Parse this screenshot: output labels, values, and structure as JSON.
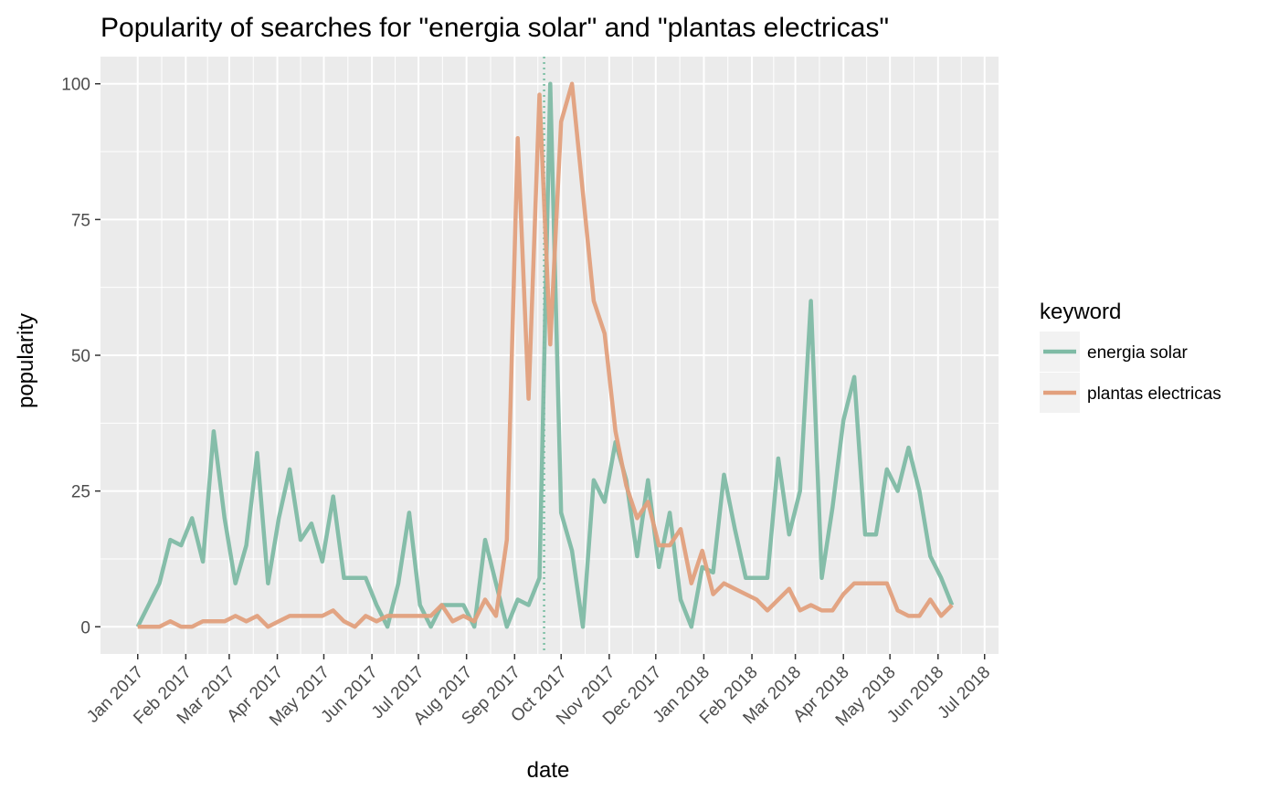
{
  "chart_data": {
    "type": "line",
    "title": "Popularity of searches for \"energia solar\" and \"plantas electricas\"",
    "xlabel": "date",
    "ylabel": "popularity",
    "xlim": [
      "2016-12-08",
      "2018-07-10"
    ],
    "ylim": [
      -5,
      105
    ],
    "y_ticks": [
      0,
      25,
      50,
      75,
      100
    ],
    "x_ticks": [
      {
        "date": "2017-01-01",
        "label": "Jan 2017"
      },
      {
        "date": "2017-02-01",
        "label": "Feb 2017"
      },
      {
        "date": "2017-03-01",
        "label": "Mar 2017"
      },
      {
        "date": "2017-04-01",
        "label": "Apr 2017"
      },
      {
        "date": "2017-05-01",
        "label": "May 2017"
      },
      {
        "date": "2017-06-01",
        "label": "Jun 2017"
      },
      {
        "date": "2017-07-01",
        "label": "Jul 2017"
      },
      {
        "date": "2017-08-01",
        "label": "Aug 2017"
      },
      {
        "date": "2017-09-01",
        "label": "Sep 2017"
      },
      {
        "date": "2017-10-01",
        "label": "Oct 2017"
      },
      {
        "date": "2017-11-01",
        "label": "Nov 2017"
      },
      {
        "date": "2017-12-01",
        "label": "Dec 2017"
      },
      {
        "date": "2018-01-01",
        "label": "Jan 2018"
      },
      {
        "date": "2018-02-01",
        "label": "Feb 2018"
      },
      {
        "date": "2018-03-01",
        "label": "Mar 2018"
      },
      {
        "date": "2018-04-01",
        "label": "Apr 2018"
      },
      {
        "date": "2018-05-01",
        "label": "May 2018"
      },
      {
        "date": "2018-06-01",
        "label": "Jun 2018"
      },
      {
        "date": "2018-07-01",
        "label": "Jul 2018"
      }
    ],
    "vline": {
      "date": "2017-09-20",
      "color": "#7fc0a6",
      "style": "dotted"
    },
    "grid": true,
    "legend": {
      "title": "keyword",
      "position": "right"
    },
    "background": "#ebebeb",
    "series": [
      {
        "name": "energia solar",
        "color": "#7fbba5",
        "points": [
          [
            "2017-01-01",
            0
          ],
          [
            "2017-01-08",
            4
          ],
          [
            "2017-01-15",
            8
          ],
          [
            "2017-01-22",
            16
          ],
          [
            "2017-01-29",
            15
          ],
          [
            "2017-02-05",
            20
          ],
          [
            "2017-02-12",
            12
          ],
          [
            "2017-02-19",
            36
          ],
          [
            "2017-02-26",
            20
          ],
          [
            "2017-03-05",
            8
          ],
          [
            "2017-03-12",
            15
          ],
          [
            "2017-03-19",
            32
          ],
          [
            "2017-03-26",
            8
          ],
          [
            "2017-04-02",
            20
          ],
          [
            "2017-04-09",
            29
          ],
          [
            "2017-04-16",
            16
          ],
          [
            "2017-04-23",
            19
          ],
          [
            "2017-04-30",
            12
          ],
          [
            "2017-05-07",
            24
          ],
          [
            "2017-05-14",
            9
          ],
          [
            "2017-05-21",
            9
          ],
          [
            "2017-05-28",
            9
          ],
          [
            "2017-06-04",
            4
          ],
          [
            "2017-06-11",
            0
          ],
          [
            "2017-06-18",
            8
          ],
          [
            "2017-06-25",
            21
          ],
          [
            "2017-07-02",
            4
          ],
          [
            "2017-07-09",
            0
          ],
          [
            "2017-07-16",
            4
          ],
          [
            "2017-07-23",
            4
          ],
          [
            "2017-07-30",
            4
          ],
          [
            "2017-08-06",
            0
          ],
          [
            "2017-08-13",
            16
          ],
          [
            "2017-08-20",
            8
          ],
          [
            "2017-08-27",
            0
          ],
          [
            "2017-09-03",
            5
          ],
          [
            "2017-09-10",
            4
          ],
          [
            "2017-09-17",
            9
          ],
          [
            "2017-09-24",
            100
          ],
          [
            "2017-10-01",
            21
          ],
          [
            "2017-10-08",
            14
          ],
          [
            "2017-10-15",
            0
          ],
          [
            "2017-10-22",
            27
          ],
          [
            "2017-10-29",
            23
          ],
          [
            "2017-11-05",
            34
          ],
          [
            "2017-11-12",
            27
          ],
          [
            "2017-11-19",
            13
          ],
          [
            "2017-11-26",
            27
          ],
          [
            "2017-12-03",
            11
          ],
          [
            "2017-12-10",
            21
          ],
          [
            "2017-12-17",
            5
          ],
          [
            "2017-12-24",
            0
          ],
          [
            "2017-12-31",
            11
          ],
          [
            "2018-01-07",
            10
          ],
          [
            "2018-01-14",
            28
          ],
          [
            "2018-01-21",
            18
          ],
          [
            "2018-01-28",
            9
          ],
          [
            "2018-02-04",
            9
          ],
          [
            "2018-02-11",
            9
          ],
          [
            "2018-02-18",
            31
          ],
          [
            "2018-02-25",
            17
          ],
          [
            "2018-03-04",
            25
          ],
          [
            "2018-03-11",
            60
          ],
          [
            "2018-03-18",
            9
          ],
          [
            "2018-03-25",
            22
          ],
          [
            "2018-04-01",
            38
          ],
          [
            "2018-04-08",
            46
          ],
          [
            "2018-04-15",
            17
          ],
          [
            "2018-04-22",
            17
          ],
          [
            "2018-04-29",
            29
          ],
          [
            "2018-05-06",
            25
          ],
          [
            "2018-05-13",
            33
          ],
          [
            "2018-05-20",
            25
          ],
          [
            "2018-05-27",
            13
          ],
          [
            "2018-06-03",
            9
          ],
          [
            "2018-06-10",
            4
          ]
        ]
      },
      {
        "name": "plantas electricas",
        "color": "#e2a07d",
        "points": [
          [
            "2017-01-01",
            0
          ],
          [
            "2017-01-08",
            0
          ],
          [
            "2017-01-15",
            0
          ],
          [
            "2017-01-22",
            1
          ],
          [
            "2017-01-29",
            0
          ],
          [
            "2017-02-05",
            0
          ],
          [
            "2017-02-12",
            1
          ],
          [
            "2017-02-19",
            1
          ],
          [
            "2017-02-26",
            1
          ],
          [
            "2017-03-05",
            2
          ],
          [
            "2017-03-12",
            1
          ],
          [
            "2017-03-19",
            2
          ],
          [
            "2017-03-26",
            0
          ],
          [
            "2017-04-02",
            1
          ],
          [
            "2017-04-09",
            2
          ],
          [
            "2017-04-16",
            2
          ],
          [
            "2017-04-23",
            2
          ],
          [
            "2017-04-30",
            2
          ],
          [
            "2017-05-07",
            3
          ],
          [
            "2017-05-14",
            1
          ],
          [
            "2017-05-21",
            0
          ],
          [
            "2017-05-28",
            2
          ],
          [
            "2017-06-04",
            1
          ],
          [
            "2017-06-11",
            2
          ],
          [
            "2017-06-18",
            2
          ],
          [
            "2017-06-25",
            2
          ],
          [
            "2017-07-02",
            2
          ],
          [
            "2017-07-09",
            2
          ],
          [
            "2017-07-16",
            4
          ],
          [
            "2017-07-23",
            1
          ],
          [
            "2017-07-30",
            2
          ],
          [
            "2017-08-06",
            1
          ],
          [
            "2017-08-13",
            5
          ],
          [
            "2017-08-20",
            2
          ],
          [
            "2017-08-27",
            16
          ],
          [
            "2017-09-03",
            90
          ],
          [
            "2017-09-10",
            42
          ],
          [
            "2017-09-17",
            98
          ],
          [
            "2017-09-24",
            52
          ],
          [
            "2017-10-01",
            93
          ],
          [
            "2017-10-08",
            100
          ],
          [
            "2017-10-15",
            80
          ],
          [
            "2017-10-22",
            60
          ],
          [
            "2017-10-29",
            54
          ],
          [
            "2017-11-05",
            36
          ],
          [
            "2017-11-12",
            26
          ],
          [
            "2017-11-19",
            20
          ],
          [
            "2017-11-26",
            23
          ],
          [
            "2017-12-03",
            15
          ],
          [
            "2017-12-10",
            15
          ],
          [
            "2017-12-17",
            18
          ],
          [
            "2017-12-24",
            8
          ],
          [
            "2017-12-31",
            14
          ],
          [
            "2018-01-07",
            6
          ],
          [
            "2018-01-14",
            8
          ],
          [
            "2018-01-21",
            7
          ],
          [
            "2018-01-28",
            6
          ],
          [
            "2018-02-04",
            5
          ],
          [
            "2018-02-11",
            3
          ],
          [
            "2018-02-18",
            5
          ],
          [
            "2018-02-25",
            7
          ],
          [
            "2018-03-04",
            3
          ],
          [
            "2018-03-11",
            4
          ],
          [
            "2018-03-18",
            3
          ],
          [
            "2018-03-25",
            3
          ],
          [
            "2018-04-01",
            6
          ],
          [
            "2018-04-08",
            8
          ],
          [
            "2018-04-15",
            8
          ],
          [
            "2018-04-22",
            8
          ],
          [
            "2018-04-29",
            8
          ],
          [
            "2018-05-06",
            3
          ],
          [
            "2018-05-13",
            2
          ],
          [
            "2018-05-20",
            2
          ],
          [
            "2018-05-27",
            5
          ],
          [
            "2018-06-03",
            2
          ],
          [
            "2018-06-10",
            4
          ]
        ]
      }
    ]
  }
}
